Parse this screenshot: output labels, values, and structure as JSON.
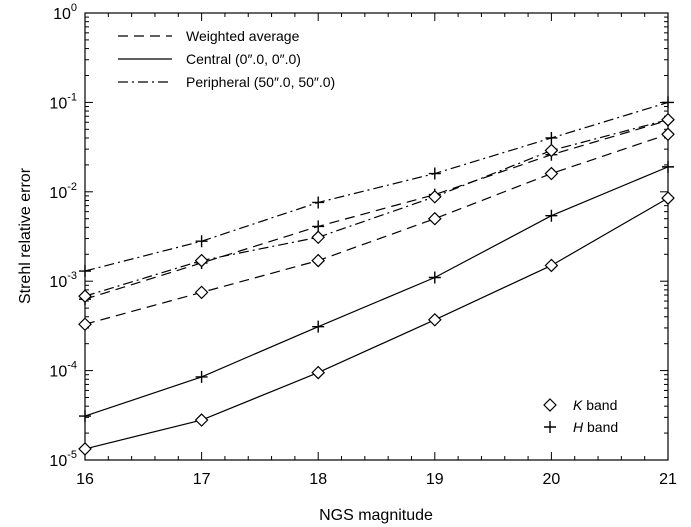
{
  "chart_data": {
    "type": "line",
    "xlabel": "NGS magnitude",
    "ylabel": "Strehl relative error",
    "xlim": [
      16,
      21
    ],
    "ylim": [
      1e-05,
      1
    ],
    "yscale": "log",
    "x_ticks": [
      16,
      17,
      18,
      19,
      20,
      21
    ],
    "y_ticks": [
      {
        "value": 1e-05,
        "base": "10",
        "exp": "-5"
      },
      {
        "value": 0.0001,
        "base": "10",
        "exp": "-4"
      },
      {
        "value": 0.001,
        "base": "10",
        "exp": "-3"
      },
      {
        "value": 0.01,
        "base": "10",
        "exp": "-2"
      },
      {
        "value": 0.1,
        "base": "10",
        "exp": "-1"
      },
      {
        "value": 1,
        "base": "10",
        "exp": "0"
      }
    ],
    "legend_lines": [
      {
        "name": "Weighted average",
        "style": "dashed"
      },
      {
        "name": "Central (0″.0, 0″.0)",
        "style": "solid"
      },
      {
        "name": "Peripheral (50″.0, 50″.0)",
        "style": "dashdot"
      }
    ],
    "legend_markers": [
      {
        "marker": "diamond",
        "band": "K",
        "suffix": " band"
      },
      {
        "marker": "plus",
        "band": "H",
        "suffix": " band"
      }
    ],
    "x": [
      16,
      17,
      18,
      19,
      20,
      21
    ],
    "series": [
      {
        "style": "dashed",
        "marker": "plus",
        "values": [
          0.00063,
          0.0016,
          0.0041,
          0.0093,
          0.026,
          0.063
        ]
      },
      {
        "style": "dashed",
        "marker": "diamond",
        "values": [
          0.00033,
          0.00075,
          0.0017,
          0.005,
          0.016,
          0.044
        ]
      },
      {
        "style": "solid",
        "marker": "plus",
        "values": [
          3.1e-05,
          8.5e-05,
          0.00031,
          0.0011,
          0.0054,
          0.019
        ]
      },
      {
        "style": "solid",
        "marker": "diamond",
        "values": [
          1.33e-05,
          2.8e-05,
          9.5e-05,
          0.00037,
          0.0015,
          0.0085
        ]
      },
      {
        "style": "dashdot",
        "marker": "plus",
        "values": [
          0.0013,
          0.0028,
          0.0076,
          0.016,
          0.04,
          0.1
        ]
      },
      {
        "style": "dashdot",
        "marker": "diamond",
        "values": [
          0.00068,
          0.0017,
          0.0031,
          0.0088,
          0.029,
          0.064
        ]
      }
    ]
  }
}
